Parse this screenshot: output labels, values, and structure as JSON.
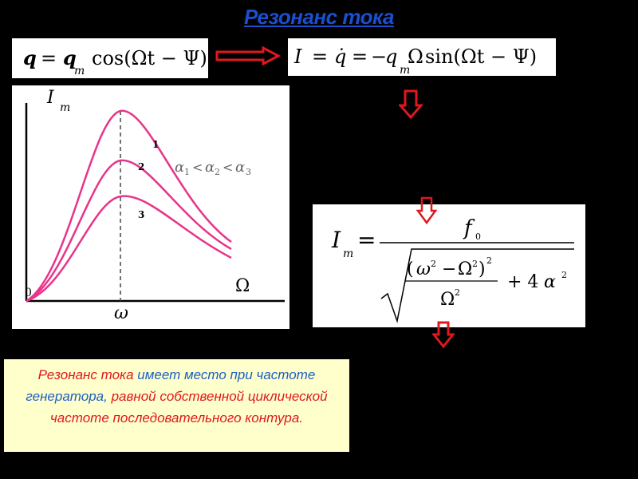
{
  "title": "Резонанс тока",
  "formula_charge": {
    "lhs": "q",
    "eq": "=",
    "amp": "q",
    "amp_sub": "m",
    "func": "cos(Ωt − Ψ)"
  },
  "formula_current": {
    "lhs": "I",
    "eq": "=",
    "qdot": "q̇",
    "eq2": "=",
    "minus": "−",
    "amp": "q",
    "amp_sub": "m",
    "omega": "Ω",
    "func": "sin(Ωt − Ψ)"
  },
  "formula_amplitude": {
    "lhs": "I",
    "lhs_sub": "m",
    "eq": "=",
    "numerator": "f",
    "numerator_sub": "0",
    "paren_open": "(",
    "w": "ω",
    "exp2a": "2",
    "minus": "−",
    "Om": "Ω",
    "exp2b": "2",
    "paren_close": ")",
    "exp2c": "2",
    "den": "Ω",
    "exp2d": "2",
    "plus": "+ 4",
    "alpha": "α",
    "exp2e": "2"
  },
  "graph": {
    "y_label": "I",
    "y_label_sub": "m",
    "x_label": "Ω",
    "origin": "0",
    "peak_label": "ω",
    "curve_labels": [
      "1",
      "2",
      "3"
    ],
    "inequality": {
      "a": "α",
      "s1": "1",
      "lt1": "<",
      "b": "α",
      "s2": "2",
      "lt2": "<",
      "c": "α",
      "s3": "3"
    }
  },
  "note": {
    "part1": "Резонанс тока",
    "part2": " имеет место при частоте генератора,",
    "part3": " равной собственной циклической частоте последовательного  контура."
  },
  "colors": {
    "title": "#1a4fd0",
    "curve": "#e8348a",
    "arrow": "#e0171f",
    "note_bg": "#ffffcc"
  }
}
